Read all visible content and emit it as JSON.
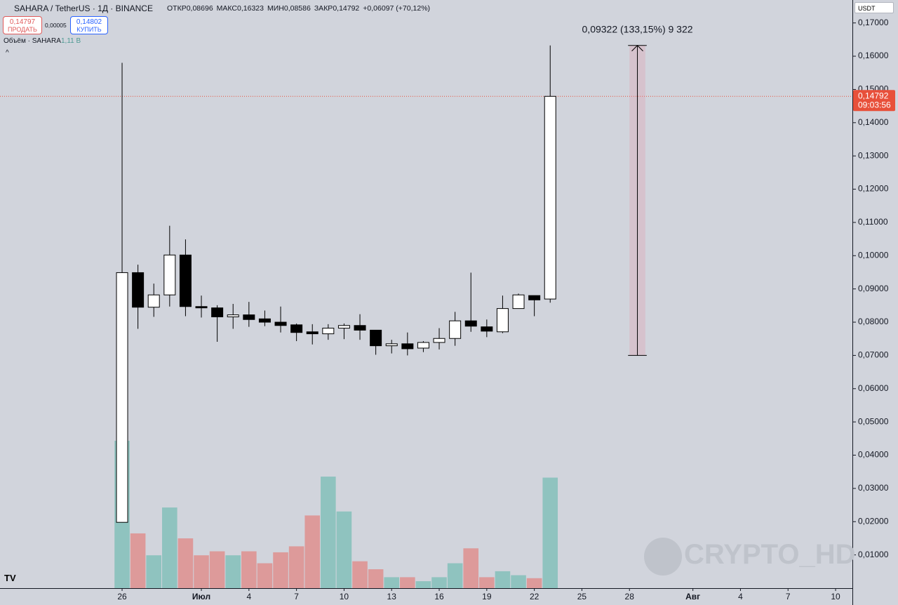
{
  "chart_data": {
    "type": "candlestick",
    "title": "SAHARA / TetherUS · 1Д · BINANCE",
    "ohlc_legend": [
      {
        "label": "ОТКР",
        "value": "0,08696"
      },
      {
        "label": "МАКС",
        "value": "0,16323"
      },
      {
        "label": "МИН",
        "value": "0,08586"
      },
      {
        "label": "ЗАКР",
        "value": "0,14792"
      }
    ],
    "change": "+0,06097 (+70,12%)",
    "sell": {
      "price": "0,14797",
      "label": "ПРОДАТЬ"
    },
    "spread": "0,00005",
    "buy": {
      "price": "0,14802",
      "label": "КУПИТЬ"
    },
    "volume_title": "Объём · SAHARA",
    "volume_label": "1,11 B",
    "currency": "USDT",
    "watermark": "CRYPTO_HD",
    "x": [
      0,
      1,
      2,
      3,
      4,
      5,
      6,
      7,
      8,
      9,
      10,
      11,
      12,
      13,
      14,
      15,
      16,
      17,
      18,
      19,
      20,
      21,
      22,
      23,
      24,
      25,
      26,
      27
    ],
    "open": [
      0.0198,
      0.0949,
      0.0845,
      0.0882,
      0.1002,
      0.0847,
      0.0843,
      0.0816,
      0.0822,
      0.081,
      0.08,
      0.0792,
      0.0771,
      0.0765,
      0.0782,
      0.079,
      0.0776,
      0.0729,
      0.0735,
      0.0722,
      0.0739,
      0.0751,
      0.0804,
      0.0786,
      0.0771,
      0.0841,
      0.088,
      0.08696
    ],
    "high": [
      0.158,
      0.0973,
      0.0916,
      0.109,
      0.1049,
      0.088,
      0.0851,
      0.0855,
      0.0861,
      0.0835,
      0.0847,
      0.0796,
      0.0794,
      0.0794,
      0.0796,
      0.0824,
      0.0776,
      0.0747,
      0.0769,
      0.0743,
      0.0782,
      0.0831,
      0.0949,
      0.0808,
      0.088,
      0.0886,
      0.088,
      0.16323
    ],
    "low": [
      0.0198,
      0.078,
      0.0816,
      0.0847,
      0.0818,
      0.0814,
      0.0741,
      0.078,
      0.0786,
      0.0788,
      0.0769,
      0.0743,
      0.0733,
      0.0747,
      0.0749,
      0.0747,
      0.0702,
      0.0706,
      0.07,
      0.071,
      0.0718,
      0.0729,
      0.0771,
      0.0755,
      0.0767,
      0.0841,
      0.0818,
      0.08586
    ],
    "close": [
      0.0949,
      0.0845,
      0.0882,
      0.1002,
      0.0847,
      0.0843,
      0.0816,
      0.0822,
      0.0808,
      0.08,
      0.079,
      0.0769,
      0.0765,
      0.0782,
      0.079,
      0.0776,
      0.0729,
      0.0735,
      0.072,
      0.0739,
      0.0751,
      0.0804,
      0.0788,
      0.0773,
      0.0841,
      0.0882,
      0.0867,
      0.14792
    ],
    "volume": [
      1.48,
      0.55,
      0.33,
      0.81,
      0.5,
      0.33,
      0.37,
      0.33,
      0.37,
      0.25,
      0.36,
      0.42,
      0.73,
      1.12,
      0.77,
      0.27,
      0.19,
      0.11,
      0.11,
      0.07,
      0.11,
      0.25,
      0.4,
      0.11,
      0.17,
      0.13,
      0.1,
      1.11
    ],
    "up_color": "#ffffff",
    "down_color": "#000000",
    "volume_up_color": "#8fc3bf",
    "volume_down_color": "#dd9a9a",
    "last_price": {
      "value": 0.14792,
      "label": "0,14792",
      "countdown": "09:03:56",
      "color": "#e8503a"
    },
    "measure": {
      "label": "0,09322 (133,15%) 9 322",
      "from": 0.07001,
      "to": 0.16323,
      "x0": 32,
      "x1": 33
    },
    "xlim": [
      -7.7,
      46.06
    ],
    "ylim": [
      0.0,
      0.1769
    ],
    "xticks": [
      {
        "value": 0,
        "label": "26"
      },
      {
        "value": 5,
        "label": "Июл"
      },
      {
        "value": 8,
        "label": "4"
      },
      {
        "value": 11,
        "label": "7"
      },
      {
        "value": 14,
        "label": "10"
      },
      {
        "value": 17,
        "label": "13"
      },
      {
        "value": 20,
        "label": "16"
      },
      {
        "value": 23,
        "label": "19"
      },
      {
        "value": 26,
        "label": "22"
      },
      {
        "value": 29,
        "label": "25"
      },
      {
        "value": 32,
        "label": "28"
      },
      {
        "value": 36,
        "label": "Авг"
      },
      {
        "value": 39,
        "label": "4"
      },
      {
        "value": 42,
        "label": "7"
      },
      {
        "value": 45,
        "label": "10"
      }
    ],
    "yticks": [
      {
        "value": 0.01,
        "label": "0,01000"
      },
      {
        "value": 0.02,
        "label": "0,02000"
      },
      {
        "value": 0.03,
        "label": "0,03000"
      },
      {
        "value": 0.04,
        "label": "0,04000"
      },
      {
        "value": 0.05,
        "label": "0,05000"
      },
      {
        "value": 0.06,
        "label": "0,06000"
      },
      {
        "value": 0.07,
        "label": "0,07000"
      },
      {
        "value": 0.08,
        "label": "0,08000"
      },
      {
        "value": 0.09,
        "label": "0,09000"
      },
      {
        "value": 0.1,
        "label": "0,10000"
      },
      {
        "value": 0.11,
        "label": "0,11000"
      },
      {
        "value": 0.12,
        "label": "0,12000"
      },
      {
        "value": 0.13,
        "label": "0,13000"
      },
      {
        "value": 0.14,
        "label": "0,14000"
      },
      {
        "value": 0.15,
        "label": "0,15000"
      },
      {
        "value": 0.16,
        "label": "0,16000"
      },
      {
        "value": 0.17,
        "label": "0,17000"
      }
    ]
  }
}
